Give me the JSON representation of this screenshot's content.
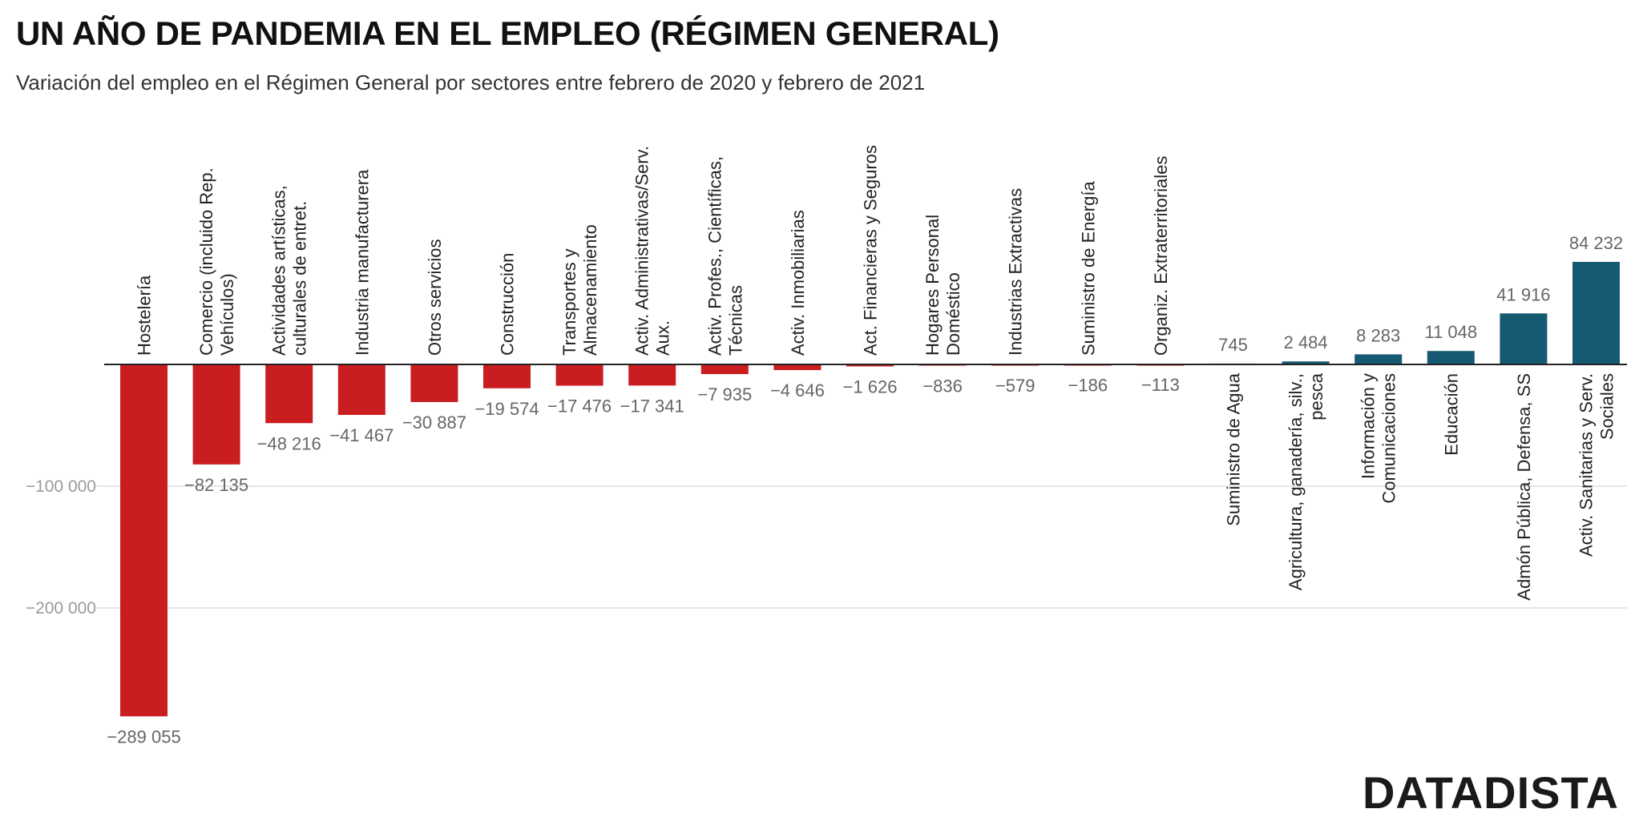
{
  "header": {
    "title": "UN AÑO DE PANDEMIA EN EL EMPLEO (RÉGIMEN GENERAL)",
    "subtitle": "Variación del empleo en el Régimen General por sectores entre febrero de 2020 y febrero de 2021"
  },
  "brand": {
    "logo_text": "DATADISTA"
  },
  "colors": {
    "negative": "#c91d1f",
    "positive": "#165a72",
    "gridline": "#dddddd",
    "baseline": "#222222"
  },
  "chart_data": {
    "type": "bar",
    "title": "UN AÑO DE PANDEMIA EN EL EMPLEO (RÉGIMEN GENERAL)",
    "subtitle": "Variación del empleo en el Régimen General por sectores entre febrero de 2020 y febrero de 2021",
    "xlabel": "",
    "ylabel": "",
    "ylim": [
      -300000,
      90000
    ],
    "grid": true,
    "yticks": [
      -100000,
      -200000
    ],
    "ytick_labels": [
      "−100 000",
      "−200 000"
    ],
    "categories": [
      [
        "Hostelería"
      ],
      [
        "Comercio (incluido Rep.",
        "Vehículos)"
      ],
      [
        "Actividades artísticas,",
        "culturales de entret."
      ],
      [
        "Industria manufacturera"
      ],
      [
        "Otros servicios"
      ],
      [
        "Construcción"
      ],
      [
        "Transportes y",
        "Almacenamiento"
      ],
      [
        "Activ. Administrativas/Serv.",
        "Aux."
      ],
      [
        "Activ. Profes., Científicas,",
        "Técnicas"
      ],
      [
        "Activ. Inmobiliarias"
      ],
      [
        "Act. Financieras y Seguros"
      ],
      [
        "Hogares Personal",
        "Doméstico"
      ],
      [
        "Industrias Extractivas"
      ],
      [
        "Suministro de Energía"
      ],
      [
        "Organiz. Extraterritoriales"
      ],
      [
        "Suministro de Agua"
      ],
      [
        "Agricultura, ganadería, silv.,",
        "pesca"
      ],
      [
        "Información y",
        "Comunicaciones"
      ],
      [
        "Educación"
      ],
      [
        "Admón Pública, Defensa, SS"
      ],
      [
        "Activ. Sanitarias y Serv.",
        "Sociales"
      ]
    ],
    "values": [
      -289055,
      -82135,
      -48216,
      -41467,
      -30887,
      -19574,
      -17476,
      -17341,
      -7935,
      -4646,
      -1626,
      -836,
      -579,
      -186,
      -113,
      745,
      2484,
      8283,
      11048,
      41916,
      84232
    ],
    "value_labels": [
      "−289 055",
      "−82 135",
      "−48 216",
      "−41 467",
      "−30 887",
      "−19 574",
      "−17 476",
      "−17 341",
      "−7 935",
      "−4 646",
      "−1 626",
      "−836",
      "−579",
      "−186",
      "−113",
      "745",
      "2 484",
      "8 283",
      "11 048",
      "41 916",
      "84 232"
    ]
  }
}
